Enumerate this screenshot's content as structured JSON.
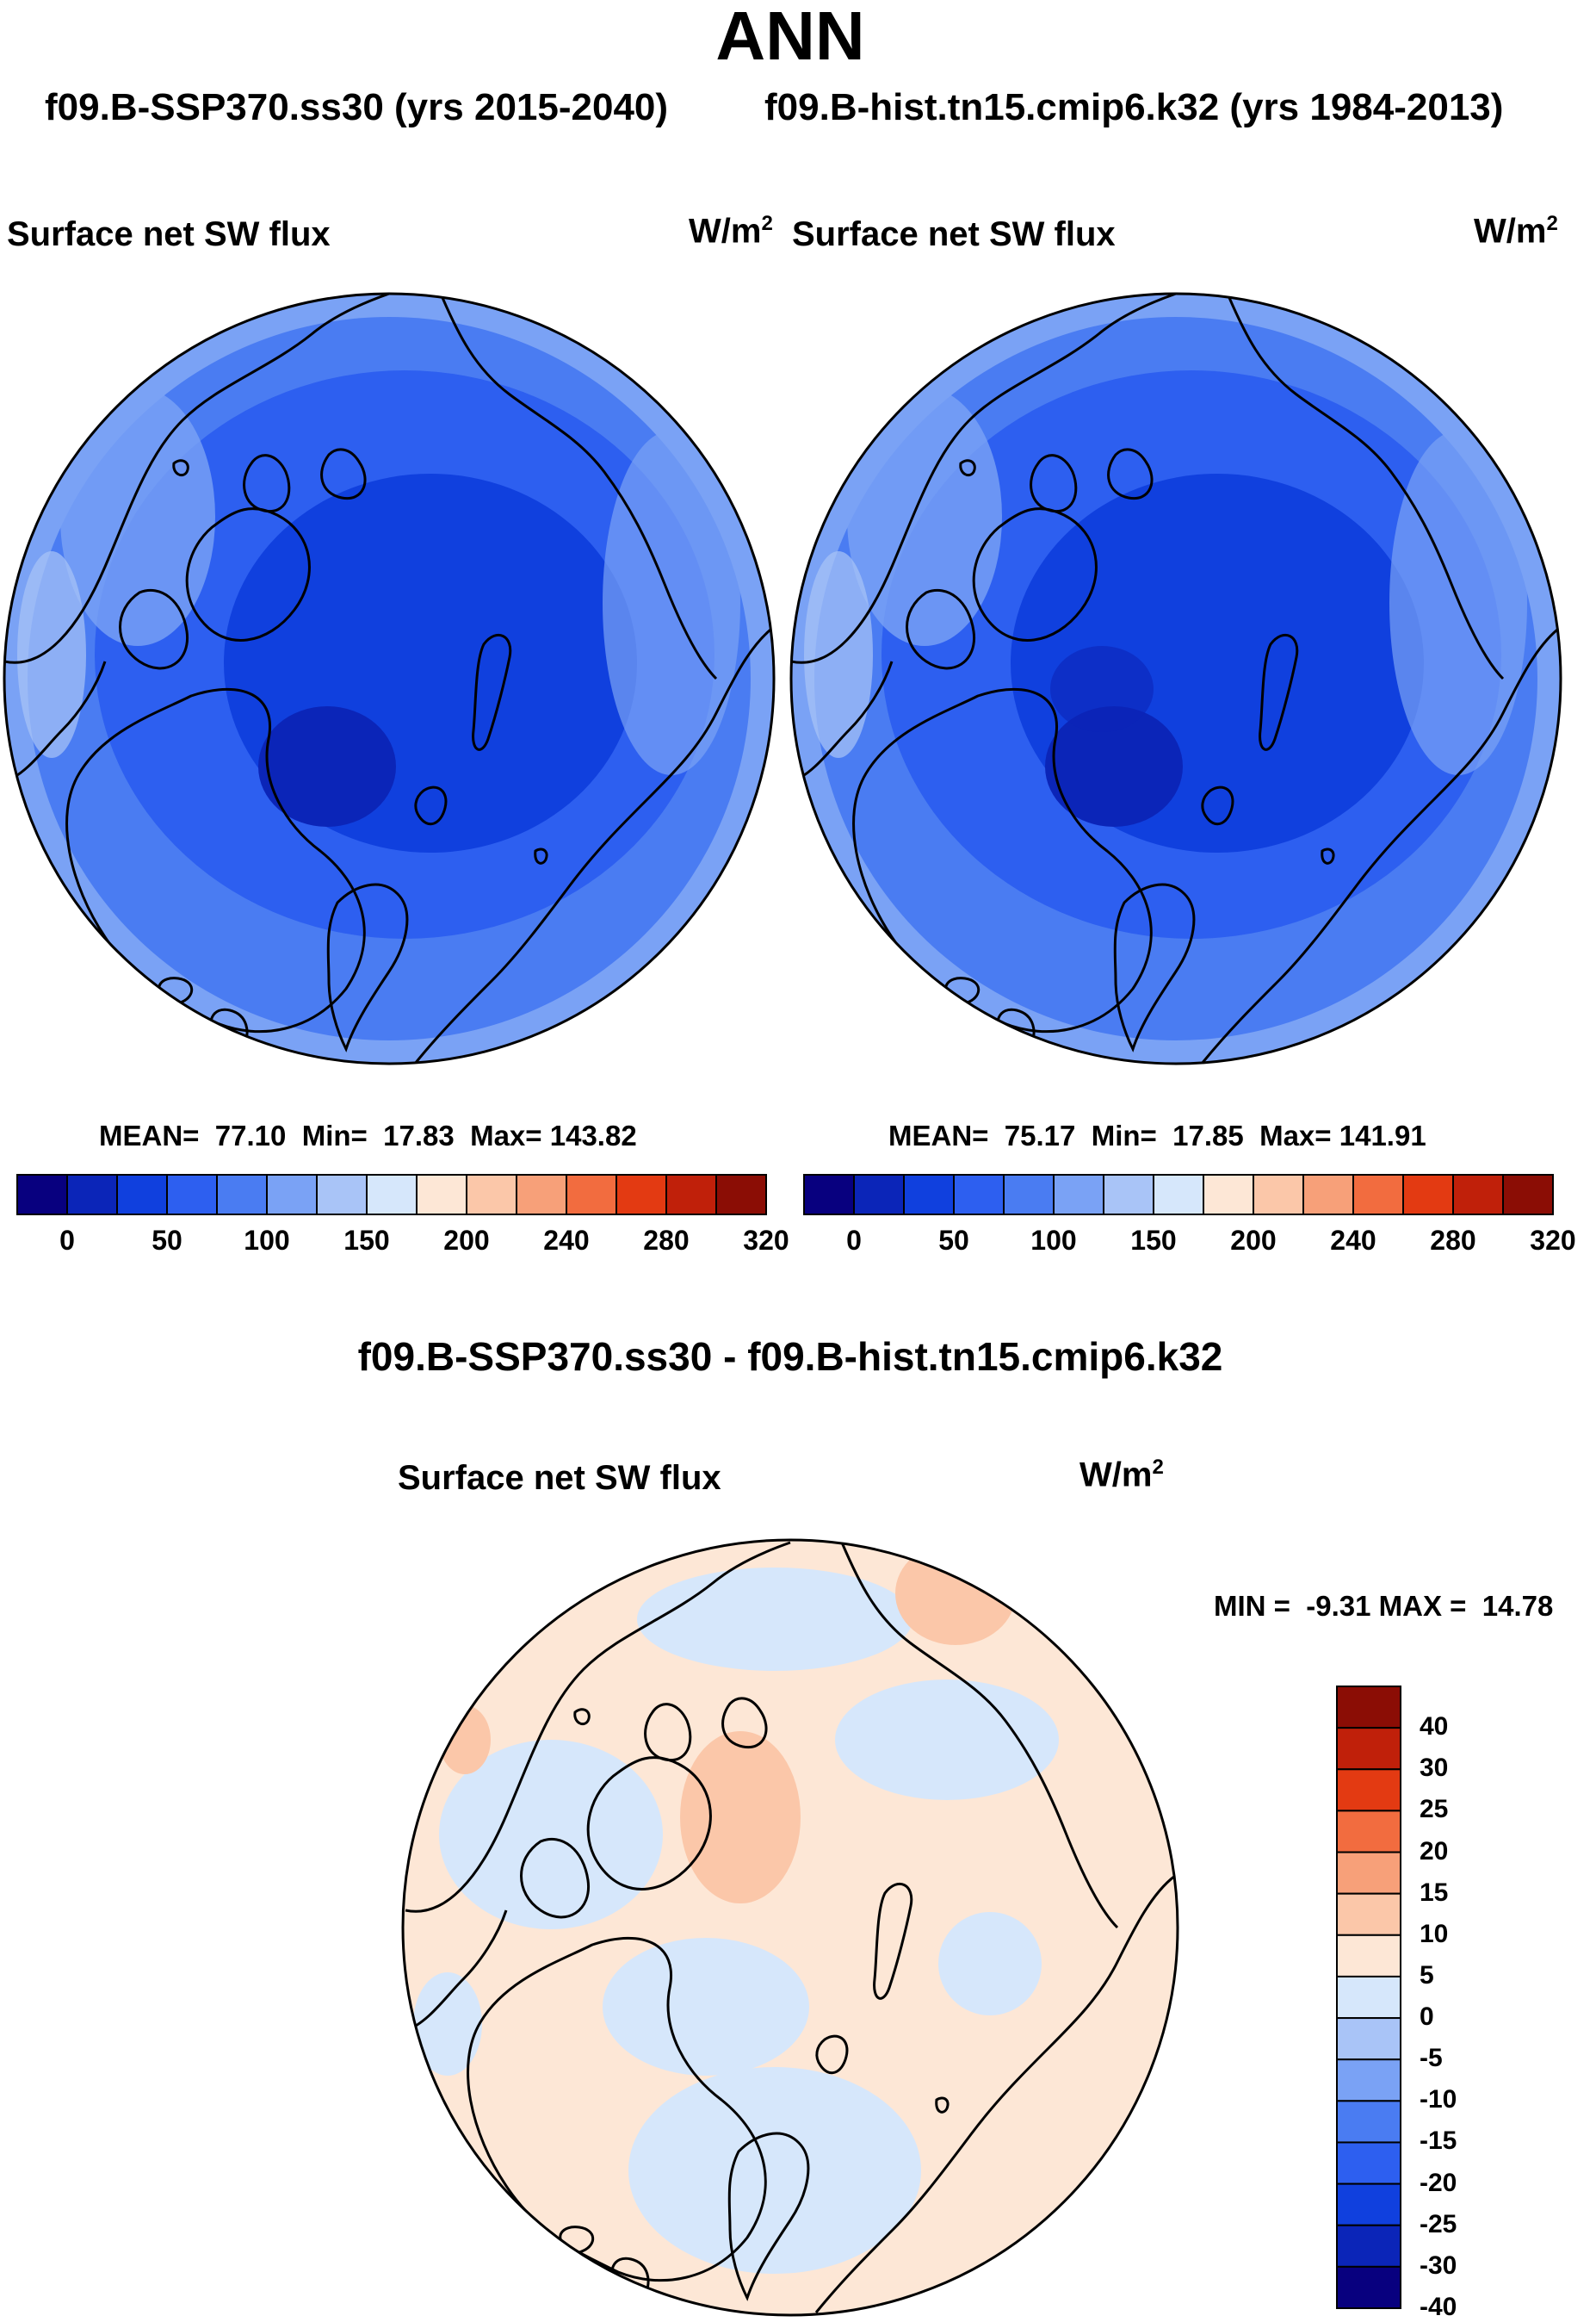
{
  "title": "ANN",
  "subtitle": {
    "case1": "f09.B-SSP370.ss30 (yrs 2015-2040)",
    "case2": "f09.B-hist.tn15.cmip6.k32 (yrs 1984-2013)"
  },
  "colors": {
    "seq_scale": [
      "#08007f",
      "#0b25b8",
      "#1040de",
      "#2d5ff0",
      "#4a7cf2",
      "#7aa2f5",
      "#a9c4f7",
      "#d6e7fb",
      "#fde7d6",
      "#fbc7a9",
      "#f7a079",
      "#f26c3f",
      "#e33a12",
      "#c0200a",
      "#8b0d05"
    ],
    "diff_scale": [
      "#08007f",
      "#0b25b8",
      "#1040de",
      "#2d5ff0",
      "#4a7cf2",
      "#7aa2f5",
      "#a9c4f7",
      "#d6e7fb",
      "#fde7d6",
      "#fbc7a9",
      "#f7a079",
      "#f26c3f",
      "#e33a12",
      "#c0200a",
      "#8b0d05"
    ],
    "coast": "#000000"
  },
  "panels": [
    {
      "name": "Surface net SW flux",
      "units_base": "W/m",
      "units_exp": "2",
      "stats": {
        "mean_label": "MEAN=",
        "mean": "77.10",
        "min_label": "Min=",
        "min": "17.83",
        "max_label": "Max=",
        "max": "143.82"
      }
    },
    {
      "name": "Surface net SW flux",
      "units_base": "W/m",
      "units_exp": "2",
      "stats": {
        "mean_label": "MEAN=",
        "mean": "75.17",
        "min_label": "Min=",
        "min": "17.85",
        "max_label": "Max=",
        "max": "141.91"
      }
    }
  ],
  "colorbar_ticks": [
    "0",
    "50",
    "100",
    "150",
    "200",
    "240",
    "280",
    "320"
  ],
  "diff": {
    "title": "f09.B-SSP370.ss30 - f09.B-hist.tn15.cmip6.k32",
    "name": "Surface net SW flux",
    "units_base": "W/m",
    "units_exp": "2",
    "minmax": "MIN =  -9.31 MAX =  14.78",
    "ticks": [
      "40",
      "30",
      "25",
      "20",
      "15",
      "10",
      "5",
      "0",
      "-5",
      "-10",
      "-15",
      "-20",
      "-25",
      "-30",
      "-40"
    ]
  }
}
